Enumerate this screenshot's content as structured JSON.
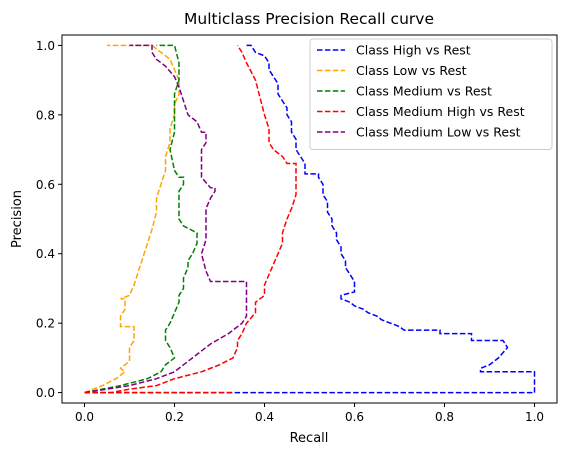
{
  "chart_data": {
    "type": "line",
    "title": "Multiclass Precision Recall curve",
    "xlabel": "Recall",
    "ylabel": "Precision",
    "xlim": [
      -0.05,
      1.05
    ],
    "ylim": [
      -0.03,
      1.03
    ],
    "xticks": [
      "0.0",
      "0.2",
      "0.4",
      "0.6",
      "0.8",
      "1.0"
    ],
    "yticks": [
      "0.0",
      "0.2",
      "0.4",
      "0.6",
      "0.8",
      "1.0"
    ],
    "grid": false,
    "legend_position": "top-right",
    "line_style": "dashed",
    "series": [
      {
        "name": "Class High vs Rest",
        "color": "#0000ff",
        "points": [
          [
            1.0,
            0.0
          ],
          [
            1.0,
            0.06
          ],
          [
            0.96,
            0.06
          ],
          [
            0.88,
            0.06
          ],
          [
            0.88,
            0.07
          ],
          [
            0.9,
            0.08
          ],
          [
            0.92,
            0.1
          ],
          [
            0.94,
            0.13
          ],
          [
            0.93,
            0.15
          ],
          [
            0.86,
            0.15
          ],
          [
            0.86,
            0.17
          ],
          [
            0.79,
            0.17
          ],
          [
            0.79,
            0.18
          ],
          [
            0.71,
            0.18
          ],
          [
            0.7,
            0.19
          ],
          [
            0.68,
            0.2
          ],
          [
            0.66,
            0.21
          ],
          [
            0.65,
            0.22
          ],
          [
            0.63,
            0.23
          ],
          [
            0.62,
            0.24
          ],
          [
            0.6,
            0.25
          ],
          [
            0.59,
            0.26
          ],
          [
            0.57,
            0.27
          ],
          [
            0.57,
            0.28
          ],
          [
            0.6,
            0.29
          ],
          [
            0.6,
            0.32
          ],
          [
            0.59,
            0.34
          ],
          [
            0.58,
            0.36
          ],
          [
            0.58,
            0.38
          ],
          [
            0.57,
            0.4
          ],
          [
            0.57,
            0.42
          ],
          [
            0.56,
            0.44
          ],
          [
            0.56,
            0.46
          ],
          [
            0.55,
            0.48
          ],
          [
            0.55,
            0.5
          ],
          [
            0.54,
            0.52
          ],
          [
            0.54,
            0.55
          ],
          [
            0.53,
            0.57
          ],
          [
            0.53,
            0.6
          ],
          [
            0.52,
            0.62
          ],
          [
            0.52,
            0.63
          ],
          [
            0.49,
            0.63
          ],
          [
            0.49,
            0.66
          ],
          [
            0.48,
            0.68
          ],
          [
            0.47,
            0.7
          ],
          [
            0.47,
            0.73
          ],
          [
            0.46,
            0.75
          ],
          [
            0.46,
            0.78
          ],
          [
            0.45,
            0.8
          ],
          [
            0.45,
            0.82
          ],
          [
            0.44,
            0.84
          ],
          [
            0.43,
            0.86
          ],
          [
            0.43,
            0.89
          ],
          [
            0.42,
            0.91
          ],
          [
            0.41,
            0.93
          ],
          [
            0.41,
            0.95
          ],
          [
            0.4,
            0.97
          ],
          [
            0.38,
            0.98
          ],
          [
            0.37,
            1.0
          ],
          [
            0.36,
            1.0
          ]
        ]
      },
      {
        "name": "Class Low vs Rest",
        "color": "#ffa500",
        "points": [
          [
            0.0,
            0.0
          ],
          [
            0.04,
            0.02
          ],
          [
            0.07,
            0.04
          ],
          [
            0.09,
            0.06
          ],
          [
            0.08,
            0.07
          ],
          [
            0.1,
            0.09
          ],
          [
            0.1,
            0.13
          ],
          [
            0.11,
            0.15
          ],
          [
            0.11,
            0.19
          ],
          [
            0.08,
            0.19
          ],
          [
            0.08,
            0.22
          ],
          [
            0.09,
            0.24
          ],
          [
            0.09,
            0.27
          ],
          [
            0.08,
            0.27
          ],
          [
            0.1,
            0.28
          ],
          [
            0.11,
            0.31
          ],
          [
            0.12,
            0.35
          ],
          [
            0.13,
            0.39
          ],
          [
            0.14,
            0.43
          ],
          [
            0.15,
            0.47
          ],
          [
            0.16,
            0.52
          ],
          [
            0.16,
            0.56
          ],
          [
            0.17,
            0.6
          ],
          [
            0.18,
            0.64
          ],
          [
            0.18,
            0.68
          ],
          [
            0.19,
            0.72
          ],
          [
            0.19,
            0.76
          ],
          [
            0.2,
            0.8
          ],
          [
            0.2,
            0.83
          ],
          [
            0.21,
            0.86
          ],
          [
            0.21,
            0.9
          ],
          [
            0.2,
            0.93
          ],
          [
            0.19,
            0.96
          ],
          [
            0.17,
            0.98
          ],
          [
            0.15,
            1.0
          ],
          [
            0.1,
            1.0
          ],
          [
            0.05,
            1.0
          ]
        ]
      },
      {
        "name": "Class Medium vs Rest",
        "color": "#008000",
        "points": [
          [
            0.0,
            0.0
          ],
          [
            0.08,
            0.02
          ],
          [
            0.14,
            0.04
          ],
          [
            0.17,
            0.06
          ],
          [
            0.18,
            0.08
          ],
          [
            0.2,
            0.1
          ],
          [
            0.19,
            0.13
          ],
          [
            0.18,
            0.15
          ],
          [
            0.18,
            0.18
          ],
          [
            0.19,
            0.2
          ],
          [
            0.2,
            0.23
          ],
          [
            0.21,
            0.26
          ],
          [
            0.21,
            0.28
          ],
          [
            0.22,
            0.3
          ],
          [
            0.22,
            0.33
          ],
          [
            0.23,
            0.36
          ],
          [
            0.23,
            0.38
          ],
          [
            0.24,
            0.4
          ],
          [
            0.25,
            0.43
          ],
          [
            0.25,
            0.46
          ],
          [
            0.22,
            0.48
          ],
          [
            0.21,
            0.5
          ],
          [
            0.21,
            0.52
          ],
          [
            0.21,
            0.56
          ],
          [
            0.21,
            0.58
          ],
          [
            0.22,
            0.6
          ],
          [
            0.22,
            0.62
          ],
          [
            0.21,
            0.62
          ],
          [
            0.2,
            0.64
          ],
          [
            0.19,
            0.7
          ],
          [
            0.2,
            0.75
          ],
          [
            0.2,
            0.8
          ],
          [
            0.2,
            0.86
          ],
          [
            0.21,
            0.9
          ],
          [
            0.21,
            0.95
          ],
          [
            0.2,
            1.0
          ],
          [
            0.17,
            1.0
          ],
          [
            0.16,
            1.0
          ]
        ]
      },
      {
        "name": "Class Medium High vs Rest",
        "color": "#ff0000",
        "points": [
          [
            0.0,
            0.0
          ],
          [
            0.06,
            0.0
          ],
          [
            0.1,
            0.01
          ],
          [
            0.16,
            0.02
          ],
          [
            0.2,
            0.04
          ],
          [
            0.26,
            0.06
          ],
          [
            0.3,
            0.08
          ],
          [
            0.33,
            0.1
          ],
          [
            0.34,
            0.13
          ],
          [
            0.34,
            0.15
          ],
          [
            0.35,
            0.17
          ],
          [
            0.36,
            0.2
          ],
          [
            0.38,
            0.23
          ],
          [
            0.38,
            0.26
          ],
          [
            0.4,
            0.28
          ],
          [
            0.4,
            0.31
          ],
          [
            0.41,
            0.34
          ],
          [
            0.42,
            0.37
          ],
          [
            0.43,
            0.4
          ],
          [
            0.44,
            0.43
          ],
          [
            0.44,
            0.46
          ],
          [
            0.45,
            0.5
          ],
          [
            0.46,
            0.53
          ],
          [
            0.47,
            0.57
          ],
          [
            0.47,
            0.62
          ],
          [
            0.47,
            0.66
          ],
          [
            0.45,
            0.66
          ],
          [
            0.44,
            0.68
          ],
          [
            0.42,
            0.7
          ],
          [
            0.41,
            0.72
          ],
          [
            0.41,
            0.76
          ],
          [
            0.4,
            0.8
          ],
          [
            0.39,
            0.85
          ],
          [
            0.38,
            0.9
          ],
          [
            0.36,
            0.95
          ],
          [
            0.35,
            0.98
          ],
          [
            0.34,
            1.0
          ]
        ]
      },
      {
        "name": "Class Medium Low vs Rest",
        "color": "#800080",
        "points": [
          [
            0.0,
            0.0
          ],
          [
            0.1,
            0.02
          ],
          [
            0.16,
            0.04
          ],
          [
            0.2,
            0.06
          ],
          [
            0.22,
            0.08
          ],
          [
            0.25,
            0.11
          ],
          [
            0.28,
            0.14
          ],
          [
            0.32,
            0.17
          ],
          [
            0.35,
            0.2
          ],
          [
            0.36,
            0.22
          ],
          [
            0.36,
            0.29
          ],
          [
            0.36,
            0.32
          ],
          [
            0.28,
            0.32
          ],
          [
            0.27,
            0.35
          ],
          [
            0.26,
            0.4
          ],
          [
            0.27,
            0.44
          ],
          [
            0.27,
            0.48
          ],
          [
            0.27,
            0.53
          ],
          [
            0.28,
            0.56
          ],
          [
            0.29,
            0.58
          ],
          [
            0.29,
            0.59
          ],
          [
            0.28,
            0.59
          ],
          [
            0.26,
            0.62
          ],
          [
            0.26,
            0.66
          ],
          [
            0.26,
            0.7
          ],
          [
            0.27,
            0.72
          ],
          [
            0.27,
            0.75
          ],
          [
            0.26,
            0.75
          ],
          [
            0.25,
            0.78
          ],
          [
            0.23,
            0.8
          ],
          [
            0.22,
            0.84
          ],
          [
            0.21,
            0.88
          ],
          [
            0.2,
            0.91
          ],
          [
            0.18,
            0.94
          ],
          [
            0.16,
            0.96
          ],
          [
            0.15,
            0.98
          ],
          [
            0.15,
            1.0
          ],
          [
            0.1,
            1.0
          ]
        ]
      },
      {
        "name": "",
        "color": "#0000ff",
        "points": [
          [
            0.0,
            0.0
          ],
          [
            1.0,
            0.0
          ]
        ]
      },
      {
        "name": "",
        "color": "#ff0000",
        "points": [
          [
            0.0,
            0.0
          ],
          [
            0.33,
            0.0
          ]
        ]
      }
    ]
  }
}
